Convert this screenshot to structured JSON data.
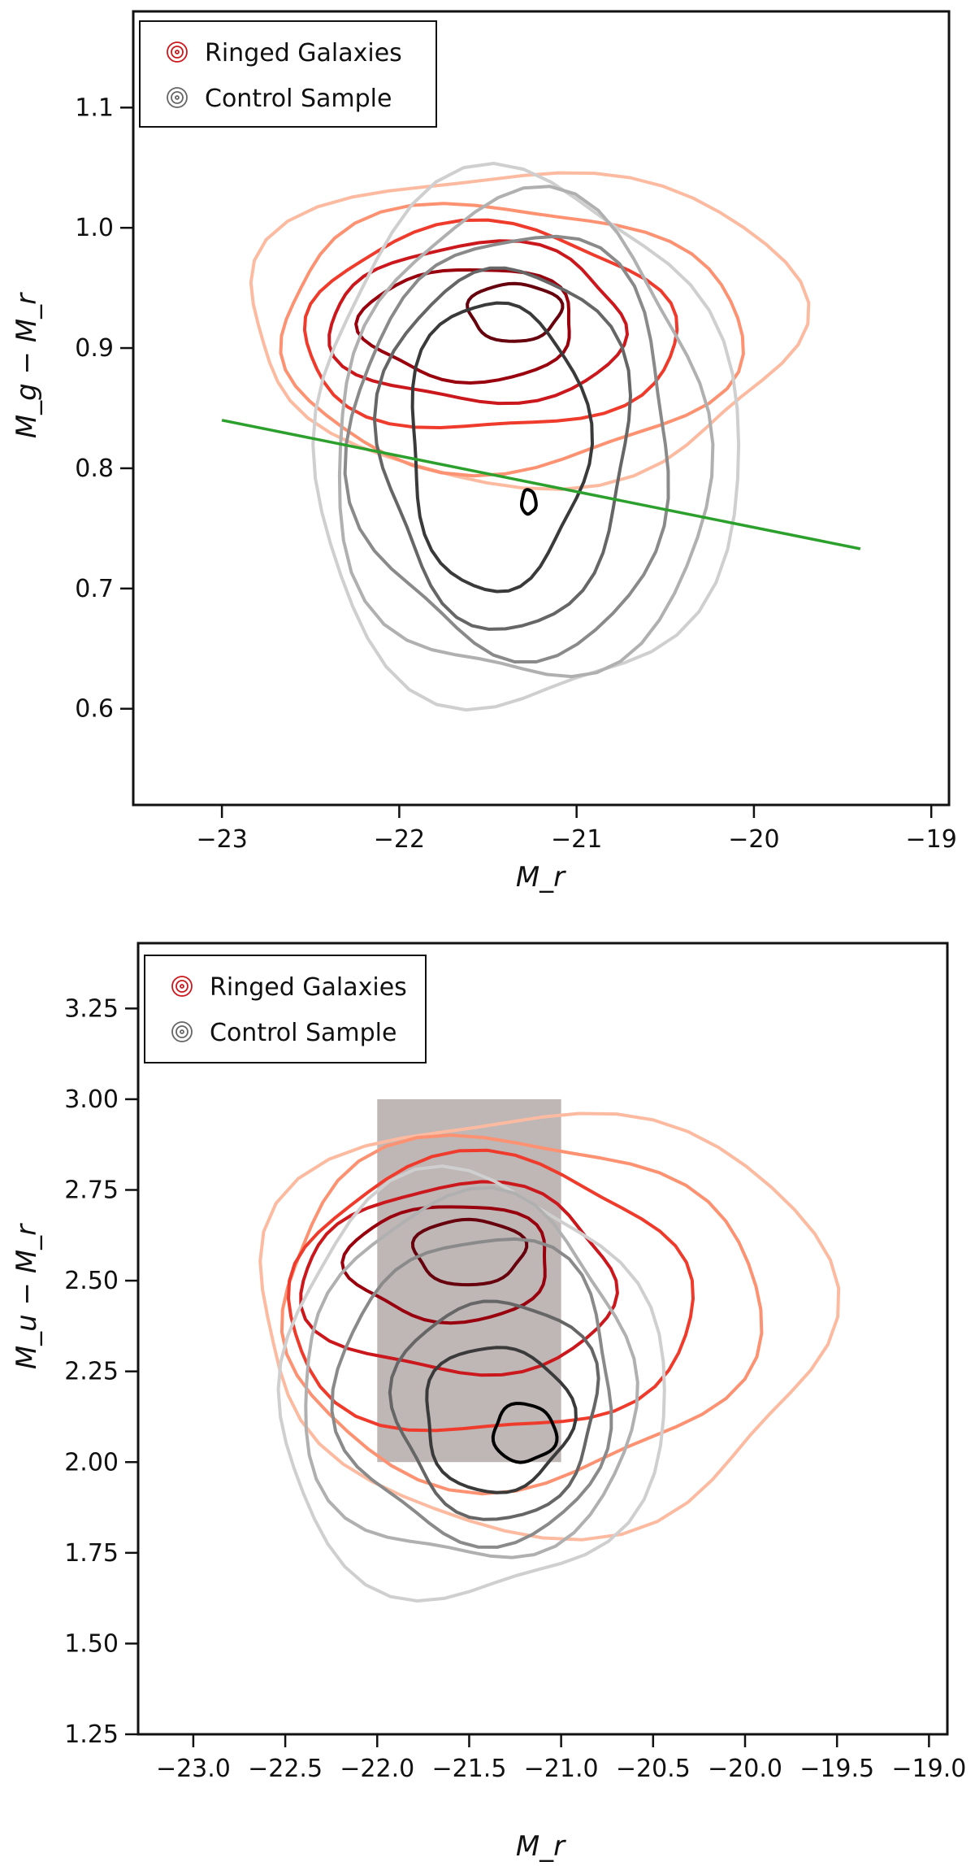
{
  "chart_data": [
    {
      "type": "contour",
      "xlabel": "M_r",
      "ylabel": "M_g − M_r",
      "xlim": [
        -23.5,
        -18.9
      ],
      "ylim": [
        0.52,
        1.18
      ],
      "xticks": [
        -23,
        -22,
        -21,
        -20,
        -19
      ],
      "xtick_labels": [
        "−23",
        "−22",
        "−21",
        "−20",
        "−19"
      ],
      "yticks": [
        0.6,
        0.7,
        0.8,
        0.9,
        1.0,
        1.1
      ],
      "ytick_labels": [
        "0.6",
        "0.7",
        "0.8",
        "0.9",
        "1.0",
        "1.1"
      ],
      "legend": {
        "position": "top-left",
        "entries": [
          "Ringed Galaxies",
          "Control Sample"
        ]
      },
      "series": [
        {
          "name": "Ringed Galaxies",
          "colors": [
            "#fee0d2",
            "#fcbba1",
            "#fc9272",
            "#ef3b2c",
            "#cb181d",
            "#99000d",
            "#67000d"
          ],
          "contours": [
            {
              "cx": -21.3,
              "cy": 0.92,
              "rx": 1.55,
              "ry": 0.13
            },
            {
              "cx": -21.4,
              "cy": 0.91,
              "rx": 1.3,
              "ry": 0.11
            },
            {
              "cx": -21.5,
              "cy": 0.915,
              "rx": 1.05,
              "ry": 0.085
            },
            {
              "cx": -21.55,
              "cy": 0.92,
              "rx": 0.83,
              "ry": 0.066
            },
            {
              "cx": -21.6,
              "cy": 0.92,
              "rx": 0.6,
              "ry": 0.047
            },
            {
              "cx": -21.35,
              "cy": 0.93,
              "rx": 0.26,
              "ry": 0.024
            }
          ]
        },
        {
          "name": "Control Sample",
          "colors": [
            "#e8e8e8",
            "#cfcfcf",
            "#b0b0b0",
            "#8a8a8a",
            "#666666",
            "#3a3a3a",
            "#000000"
          ],
          "contours": [
            {
              "cx": -21.3,
              "cy": 0.82,
              "rx": 1.2,
              "ry": 0.22
            },
            {
              "cx": -21.3,
              "cy": 0.82,
              "rx": 1.05,
              "ry": 0.2
            },
            {
              "cx": -21.35,
              "cy": 0.82,
              "rx": 0.9,
              "ry": 0.175
            },
            {
              "cx": -21.4,
              "cy": 0.82,
              "rx": 0.7,
              "ry": 0.15
            },
            {
              "cx": -21.45,
              "cy": 0.82,
              "rx": 0.5,
              "ry": 0.12
            },
            {
              "cx": -21.27,
              "cy": 0.772,
              "rx": 0.04,
              "ry": 0.01
            }
          ]
        }
      ],
      "line": {
        "color": "#2ca02c",
        "x": [
          -23.0,
          -19.4
        ],
        "y": [
          0.84,
          0.733
        ]
      }
    },
    {
      "type": "contour",
      "xlabel": "M_r",
      "ylabel": "M_u − M_r",
      "xlim": [
        -23.3,
        -18.9
      ],
      "ylim": [
        1.25,
        3.43
      ],
      "xticks": [
        -23.0,
        -22.5,
        -22.0,
        -21.5,
        -21.0,
        -20.5,
        -20.0,
        -19.5,
        -19.0
      ],
      "xtick_labels": [
        "−23.0",
        "−22.5",
        "−22.0",
        "−21.5",
        "−21.0",
        "−20.5",
        "−20.0",
        "−19.5",
        "−19.0"
      ],
      "yticks": [
        1.25,
        1.5,
        1.75,
        2.0,
        2.25,
        2.5,
        2.75,
        3.0,
        3.25
      ],
      "ytick_labels": [
        "1.25",
        "1.50",
        "1.75",
        "2.00",
        "2.25",
        "2.50",
        "2.75",
        "3.00",
        "3.25"
      ],
      "legend": {
        "position": "top-left",
        "entries": [
          "Ringed Galaxies",
          "Control Sample"
        ]
      },
      "series": [
        {
          "name": "Ringed Galaxies",
          "colors": [
            "#fee0d2",
            "#fcbba1",
            "#fc9272",
            "#ef3b2c",
            "#cb181d",
            "#99000d",
            "#67000d"
          ],
          "contours": [
            {
              "cx": -21.1,
              "cy": 2.4,
              "rx": 1.55,
              "ry": 0.58
            },
            {
              "cx": -21.25,
              "cy": 2.42,
              "rx": 1.3,
              "ry": 0.48
            },
            {
              "cx": -21.4,
              "cy": 2.45,
              "rx": 1.1,
              "ry": 0.38
            },
            {
              "cx": -21.55,
              "cy": 2.5,
              "rx": 0.85,
              "ry": 0.26
            },
            {
              "cx": -21.6,
              "cy": 2.55,
              "rx": 0.55,
              "ry": 0.16
            },
            {
              "cx": -21.5,
              "cy": 2.58,
              "rx": 0.3,
              "ry": 0.09
            }
          ]
        },
        {
          "name": "Control Sample",
          "colors": [
            "#e8e8e8",
            "#cfcfcf",
            "#b0b0b0",
            "#8a8a8a",
            "#666666",
            "#3a3a3a",
            "#000000"
          ],
          "contours": [
            {
              "cx": -21.5,
              "cy": 2.2,
              "rx": 1.05,
              "ry": 0.58
            },
            {
              "cx": -21.5,
              "cy": 2.22,
              "rx": 0.9,
              "ry": 0.5
            },
            {
              "cx": -21.45,
              "cy": 2.2,
              "rx": 0.75,
              "ry": 0.42
            },
            {
              "cx": -21.35,
              "cy": 2.15,
              "rx": 0.55,
              "ry": 0.3
            },
            {
              "cx": -21.35,
              "cy": 2.12,
              "rx": 0.4,
              "ry": 0.2
            },
            {
              "cx": -21.2,
              "cy": 2.08,
              "rx": 0.17,
              "ry": 0.08
            }
          ]
        }
      ],
      "shaded_region": {
        "color": "#b8aeae",
        "x": [
          -22.0,
          -21.0
        ],
        "y": [
          2.0,
          3.0
        ]
      }
    }
  ]
}
